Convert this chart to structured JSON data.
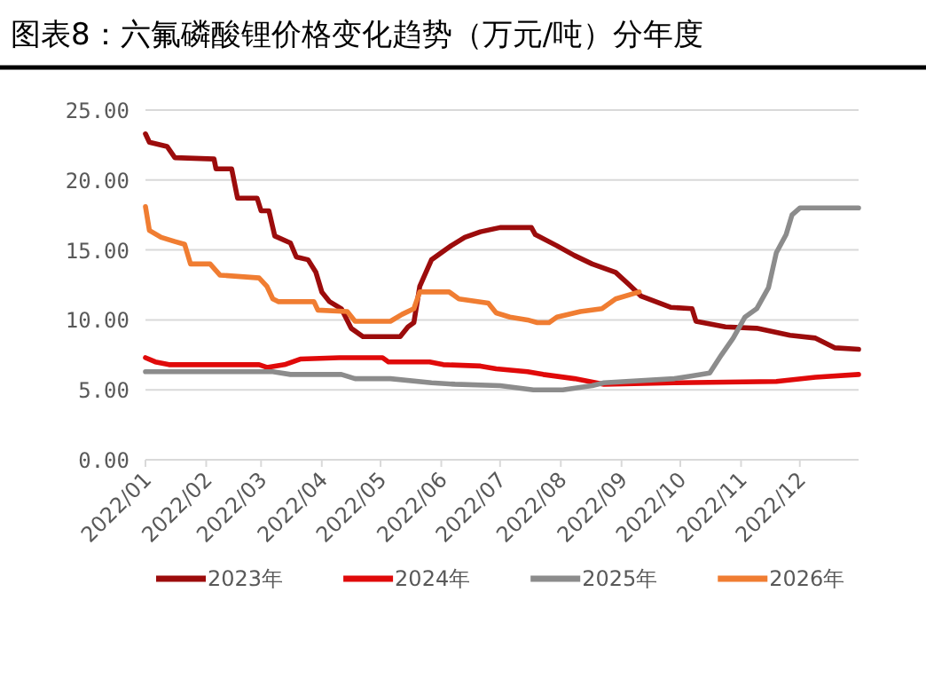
{
  "chart_data": {
    "type": "line",
    "title": "图表8：六氟磷酸锂价格变化趋势（万元/吨）分年度",
    "xlim": [
      "2022-01-01",
      "2022-12-31"
    ],
    "xticks": [
      {
        "value": "2022-01-01",
        "label": "2022/01"
      },
      {
        "value": "2022-02-01",
        "label": "2022/02"
      },
      {
        "value": "2022-03-01",
        "label": "2022/03"
      },
      {
        "value": "2022-04-01",
        "label": "2022/04"
      },
      {
        "value": "2022-05-01",
        "label": "2022/05"
      },
      {
        "value": "2022-06-01",
        "label": "2022/06"
      },
      {
        "value": "2022-07-01",
        "label": "2022/07"
      },
      {
        "value": "2022-08-01",
        "label": "2022/08"
      },
      {
        "value": "2022-09-01",
        "label": "2022/09"
      },
      {
        "value": "2022-10-01",
        "label": "2022/10"
      },
      {
        "value": "2022-11-01",
        "label": "2022/11"
      },
      {
        "value": "2022-12-01",
        "label": "2022/12"
      }
    ],
    "ylim": [
      0,
      25
    ],
    "yticks": [
      {
        "value": 0,
        "label": "0.00"
      },
      {
        "value": 5,
        "label": "5.00"
      },
      {
        "value": 10,
        "label": "10.00"
      },
      {
        "value": 15,
        "label": "15.00"
      },
      {
        "value": 20,
        "label": "20.00"
      },
      {
        "value": 25,
        "label": "25.00"
      }
    ],
    "grid": "y",
    "legend": "bottom",
    "marker": "none",
    "line_style": "solid",
    "series": [
      {
        "name": "2023年",
        "color": "#9c0c0c",
        "x": [
          "2022-01-01",
          "2022-01-03",
          "2022-01-12",
          "2022-01-16",
          "2022-02-05",
          "2022-02-06",
          "2022-02-14",
          "2022-02-17",
          "2022-02-27",
          "2022-03-01",
          "2022-03-05",
          "2022-03-08",
          "2022-03-16",
          "2022-03-19",
          "2022-03-25",
          "2022-03-29",
          "2022-04-01",
          "2022-04-05",
          "2022-04-11",
          "2022-04-16",
          "2022-04-22",
          "2022-05-11",
          "2022-05-15",
          "2022-05-18",
          "2022-05-21",
          "2022-05-27",
          "2022-06-06",
          "2022-06-13",
          "2022-06-21",
          "2022-07-01",
          "2022-07-17",
          "2022-07-19",
          "2022-07-30",
          "2022-08-08",
          "2022-08-17",
          "2022-08-29",
          "2022-09-05",
          "2022-09-11",
          "2022-09-26",
          "2022-10-07",
          "2022-10-09",
          "2022-10-24",
          "2022-11-09",
          "2022-11-26",
          "2022-12-09",
          "2022-12-19",
          "2022-12-31"
        ],
        "values": [
          23.3,
          22.7,
          22.4,
          21.6,
          21.5,
          20.8,
          20.8,
          18.7,
          18.7,
          17.8,
          17.8,
          16.0,
          15.5,
          14.5,
          14.3,
          13.4,
          12.0,
          11.3,
          10.8,
          9.4,
          8.8,
          8.8,
          9.5,
          9.8,
          12.4,
          14.3,
          15.3,
          15.9,
          16.3,
          16.6,
          16.6,
          16.1,
          15.3,
          14.6,
          14.0,
          13.4,
          12.5,
          11.7,
          10.9,
          10.8,
          9.9,
          9.5,
          9.4,
          8.9,
          8.7,
          8.0,
          7.9
        ]
      },
      {
        "name": "2024年",
        "color": "#e00a0a",
        "x": [
          "2022-01-01",
          "2022-01-06",
          "2022-01-13",
          "2022-02-28",
          "2022-03-04",
          "2022-03-13",
          "2022-03-21",
          "2022-04-10",
          "2022-05-02",
          "2022-05-05",
          "2022-05-26",
          "2022-06-02",
          "2022-06-21",
          "2022-06-29",
          "2022-07-15",
          "2022-07-23",
          "2022-08-08",
          "2022-08-23",
          "2022-09-28",
          "2022-11-19",
          "2022-12-09",
          "2022-12-31"
        ],
        "values": [
          7.3,
          7.0,
          6.8,
          6.8,
          6.6,
          6.8,
          7.2,
          7.3,
          7.3,
          7.0,
          7.0,
          6.8,
          6.7,
          6.5,
          6.3,
          6.1,
          5.8,
          5.4,
          5.5,
          5.6,
          5.9,
          6.1
        ]
      },
      {
        "name": "2025年",
        "color": "#8c8c8c",
        "x": [
          "2022-01-01",
          "2022-03-07",
          "2022-03-16",
          "2022-04-11",
          "2022-04-18",
          "2022-05-06",
          "2022-05-27",
          "2022-06-08",
          "2022-07-01",
          "2022-07-18",
          "2022-08-02",
          "2022-08-17",
          "2022-08-23",
          "2022-09-28",
          "2022-10-07",
          "2022-10-16",
          "2022-10-22",
          "2022-10-28",
          "2022-11-03",
          "2022-11-09",
          "2022-11-15",
          "2022-11-19",
          "2022-11-24",
          "2022-11-27",
          "2022-12-01",
          "2022-12-31"
        ],
        "values": [
          6.3,
          6.3,
          6.1,
          6.1,
          5.8,
          5.8,
          5.5,
          5.4,
          5.3,
          5.0,
          5.0,
          5.3,
          5.5,
          5.8,
          6.0,
          6.2,
          7.5,
          8.7,
          10.2,
          10.8,
          12.3,
          14.8,
          16.1,
          17.5,
          18.0,
          18.0
        ]
      },
      {
        "name": "2026年",
        "color": "#f07d32",
        "x": [
          "2022-01-01",
          "2022-01-03",
          "2022-01-09",
          "2022-01-16",
          "2022-01-21",
          "2022-01-24",
          "2022-02-03",
          "2022-02-08",
          "2022-02-28",
          "2022-03-04",
          "2022-03-07",
          "2022-03-10",
          "2022-03-28",
          "2022-03-30",
          "2022-04-14",
          "2022-04-18",
          "2022-05-06",
          "2022-05-12",
          "2022-05-18",
          "2022-05-21",
          "2022-06-05",
          "2022-06-10",
          "2022-06-25",
          "2022-06-29",
          "2022-07-06",
          "2022-07-15",
          "2022-07-20",
          "2022-07-26",
          "2022-07-30",
          "2022-08-11",
          "2022-08-22",
          "2022-08-29",
          "2022-09-10"
        ],
        "values": [
          18.1,
          16.4,
          15.9,
          15.6,
          15.4,
          14.0,
          14.0,
          13.2,
          13.0,
          12.4,
          11.5,
          11.3,
          11.3,
          10.7,
          10.6,
          9.9,
          9.9,
          10.4,
          10.8,
          12.0,
          12.0,
          11.5,
          11.2,
          10.5,
          10.2,
          10.0,
          9.8,
          9.8,
          10.2,
          10.6,
          10.8,
          11.5,
          12.0
        ]
      }
    ]
  }
}
